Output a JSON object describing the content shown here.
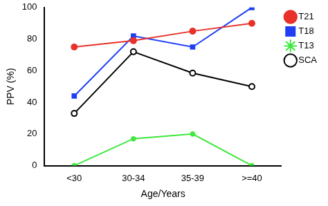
{
  "chart_data": {
    "type": "line",
    "x_label": "Age/Years",
    "y_label": "PPV (%)",
    "categories": [
      "<30",
      "30-34",
      "35-39",
      ">=40"
    ],
    "series": [
      {
        "name": "T21",
        "color": "#e8312a",
        "marker": "circle",
        "values": [
          75,
          79,
          85,
          90
        ]
      },
      {
        "name": "T18",
        "color": "#1f3ff5",
        "marker": "square",
        "values": [
          44,
          82,
          75,
          100
        ]
      },
      {
        "name": "T13",
        "color": "#3ce83c",
        "marker": "star",
        "values": [
          0,
          17,
          20,
          0
        ]
      },
      {
        "name": "SCA",
        "color": "#000000",
        "marker": "open_circle",
        "values": [
          33,
          72,
          58.5,
          50
        ]
      }
    ],
    "ylim": [
      0,
      100
    ],
    "yticks": [
      0,
      20,
      40,
      60,
      80,
      100
    ],
    "grid": false,
    "legend": "right"
  }
}
